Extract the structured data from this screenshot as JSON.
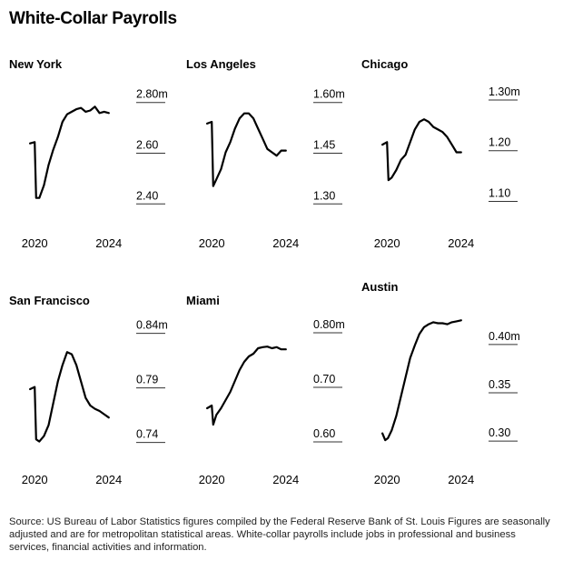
{
  "title": "White-Collar Payrolls",
  "source_note": "Source: US Bureau of Labor Statistics figures compiled by the Federal Reserve Bank of St. Louis Figures are seasonally adjusted and are for metropolitan statistical areas. White-collar payrolls include jobs in professional and business services, financial activities and information.",
  "chart_data": [
    {
      "type": "line",
      "title": "New York",
      "x_ticks": [
        "2020",
        "2024"
      ],
      "y_ticks": [
        "2.40",
        "2.60",
        "2.80m"
      ],
      "y_tick_values": [
        2.4,
        2.6,
        2.8
      ],
      "xlim": [
        2019.5,
        2024.6
      ],
      "ylim": [
        2.34,
        2.86
      ],
      "x": [
        2019.75,
        2020.0,
        2020.08,
        2020.25,
        2020.5,
        2020.75,
        2021.0,
        2021.25,
        2021.5,
        2021.75,
        2022.0,
        2022.25,
        2022.5,
        2022.75,
        2023.0,
        2023.25,
        2023.5,
        2023.75,
        2024.0
      ],
      "values": [
        2.635,
        2.64,
        2.42,
        2.42,
        2.47,
        2.55,
        2.61,
        2.66,
        2.72,
        2.75,
        2.76,
        2.77,
        2.775,
        2.76,
        2.765,
        2.78,
        2.755,
        2.76,
        2.755
      ]
    },
    {
      "type": "line",
      "title": "Los Angeles",
      "x_ticks": [
        "2020",
        "2024"
      ],
      "y_ticks": [
        "1.30",
        "1.45",
        "1.60m"
      ],
      "y_tick_values": [
        1.3,
        1.45,
        1.6
      ],
      "xlim": [
        2019.5,
        2024.6
      ],
      "ylim": [
        1.255,
        1.645
      ],
      "x": [
        2019.75,
        2020.0,
        2020.08,
        2020.25,
        2020.5,
        2020.75,
        2021.0,
        2021.25,
        2021.5,
        2021.75,
        2022.0,
        2022.25,
        2022.5,
        2022.75,
        2023.0,
        2023.25,
        2023.5,
        2023.75,
        2024.0
      ],
      "values": [
        1.535,
        1.54,
        1.35,
        1.37,
        1.4,
        1.45,
        1.48,
        1.52,
        1.55,
        1.565,
        1.565,
        1.55,
        1.52,
        1.49,
        1.46,
        1.45,
        1.44,
        1.455,
        1.455
      ]
    },
    {
      "type": "line",
      "title": "Chicago",
      "x_ticks": [
        "2020",
        "2024"
      ],
      "y_ticks": [
        "1.10",
        "1.20",
        "1.30m"
      ],
      "y_tick_values": [
        1.1,
        1.2,
        1.3
      ],
      "xlim": [
        2019.5,
        2024.6
      ],
      "ylim": [
        1.065,
        1.325
      ],
      "x": [
        2019.75,
        2020.0,
        2020.08,
        2020.25,
        2020.5,
        2020.75,
        2021.0,
        2021.25,
        2021.5,
        2021.75,
        2022.0,
        2022.25,
        2022.5,
        2022.75,
        2023.0,
        2023.25,
        2023.5,
        2023.75,
        2024.0
      ],
      "values": [
        1.21,
        1.215,
        1.14,
        1.145,
        1.16,
        1.18,
        1.19,
        1.215,
        1.24,
        1.255,
        1.26,
        1.255,
        1.245,
        1.24,
        1.235,
        1.225,
        1.21,
        1.195,
        1.195
      ]
    },
    {
      "type": "line",
      "title": "San Francisco",
      "x_ticks": [
        "2020",
        "2024"
      ],
      "y_ticks": [
        "0.74",
        "0.79",
        "0.84m"
      ],
      "y_tick_values": [
        0.74,
        0.79,
        0.84
      ],
      "xlim": [
        2019.5,
        2024.6
      ],
      "ylim": [
        0.728,
        0.853
      ],
      "x": [
        2019.75,
        2020.0,
        2020.08,
        2020.25,
        2020.5,
        2020.75,
        2021.0,
        2021.25,
        2021.5,
        2021.75,
        2022.0,
        2022.25,
        2022.5,
        2022.75,
        2023.0,
        2023.25,
        2023.5,
        2023.75,
        2024.0
      ],
      "values": [
        0.788,
        0.79,
        0.742,
        0.74,
        0.745,
        0.755,
        0.775,
        0.795,
        0.81,
        0.822,
        0.82,
        0.81,
        0.795,
        0.78,
        0.773,
        0.77,
        0.768,
        0.765,
        0.762
      ]
    },
    {
      "type": "line",
      "title": "Miami",
      "x_ticks": [
        "2020",
        "2024"
      ],
      "y_ticks": [
        "0.60",
        "0.70",
        "0.80m"
      ],
      "y_tick_values": [
        0.6,
        0.7,
        0.8
      ],
      "xlim": [
        2019.5,
        2024.6
      ],
      "ylim": [
        0.575,
        0.825
      ],
      "x": [
        2019.75,
        2020.0,
        2020.08,
        2020.25,
        2020.5,
        2020.75,
        2021.0,
        2021.25,
        2021.5,
        2021.75,
        2022.0,
        2022.25,
        2022.5,
        2022.75,
        2023.0,
        2023.25,
        2023.5,
        2023.75,
        2024.0
      ],
      "values": [
        0.66,
        0.665,
        0.63,
        0.648,
        0.66,
        0.675,
        0.69,
        0.71,
        0.73,
        0.745,
        0.755,
        0.76,
        0.77,
        0.772,
        0.773,
        0.77,
        0.772,
        0.768,
        0.768
      ]
    },
    {
      "type": "line",
      "title": "Austin",
      "x_ticks": [
        "2020",
        "2024"
      ],
      "y_ticks": [
        "0.30",
        "0.35",
        "0.40m"
      ],
      "y_tick_values": [
        0.3,
        0.35,
        0.4
      ],
      "xlim": [
        2019.5,
        2024.6
      ],
      "ylim": [
        0.285,
        0.445
      ],
      "x": [
        2019.75,
        2019.9,
        2020.05,
        2020.25,
        2020.5,
        2020.75,
        2021.0,
        2021.25,
        2021.5,
        2021.75,
        2022.0,
        2022.25,
        2022.5,
        2022.75,
        2023.0,
        2023.25,
        2023.5,
        2023.75,
        2024.0
      ],
      "values": [
        0.307,
        0.3,
        0.302,
        0.31,
        0.325,
        0.345,
        0.365,
        0.385,
        0.398,
        0.41,
        0.417,
        0.42,
        0.422,
        0.421,
        0.421,
        0.42,
        0.422,
        0.423,
        0.424
      ]
    }
  ]
}
